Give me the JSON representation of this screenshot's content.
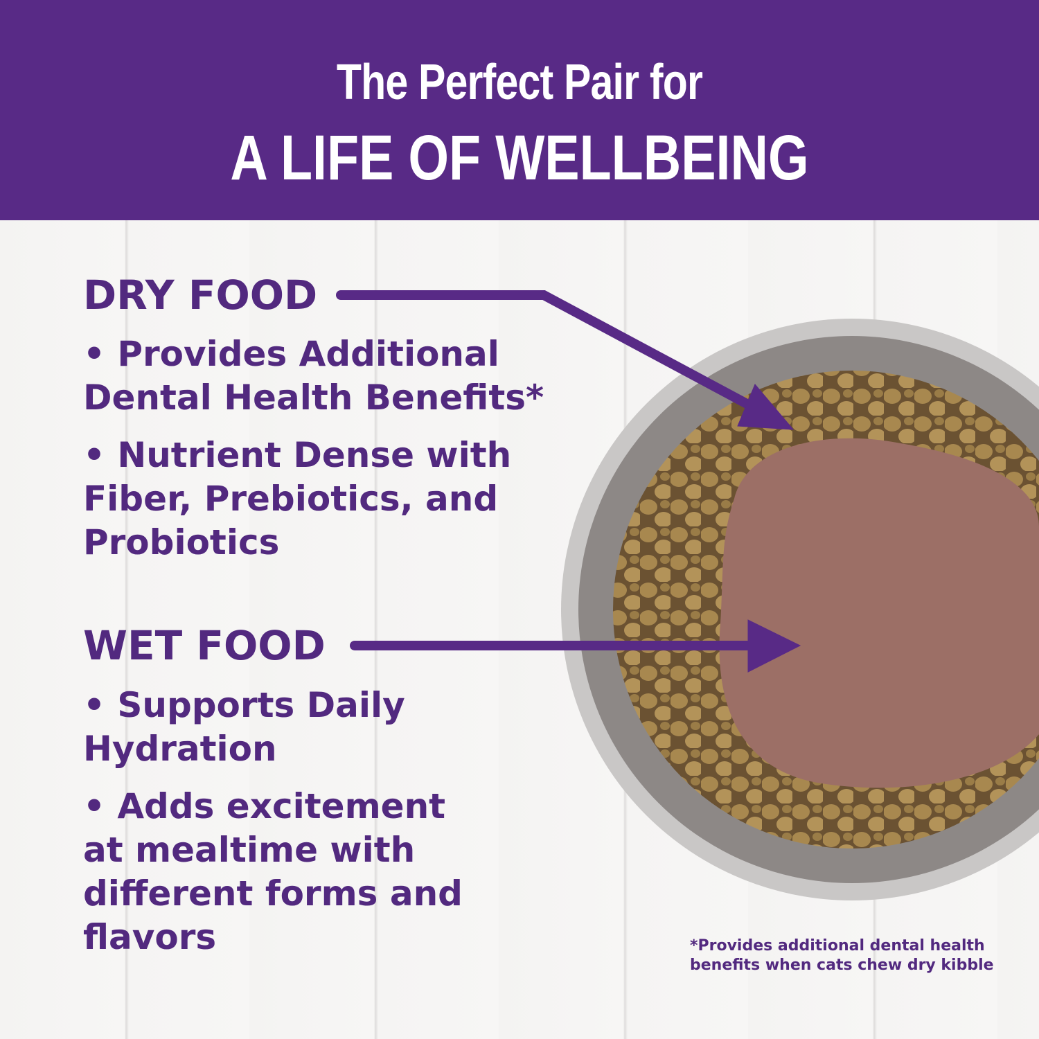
{
  "header": {
    "line1": "The Perfect Pair for",
    "line2": "A LIFE OF WELLBEING"
  },
  "dry_food": {
    "title": "DRY FOOD",
    "bullets": [
      "• Provides Additional Dental Health Benefits*",
      "• Nutrient Dense with Fiber, Prebiotics, and Probiotics"
    ]
  },
  "wet_food": {
    "title": "WET FOOD",
    "bullets": [
      "• Supports Daily Hydration",
      "• Adds excitement at mealtime with different forms and flavors"
    ]
  },
  "footnote": {
    "line1": "*Provides additional dental health",
    "line2": "benefits when cats chew dry kibble"
  },
  "colors": {
    "brand_purple": "#582a86",
    "text_purple": "#52297f"
  }
}
